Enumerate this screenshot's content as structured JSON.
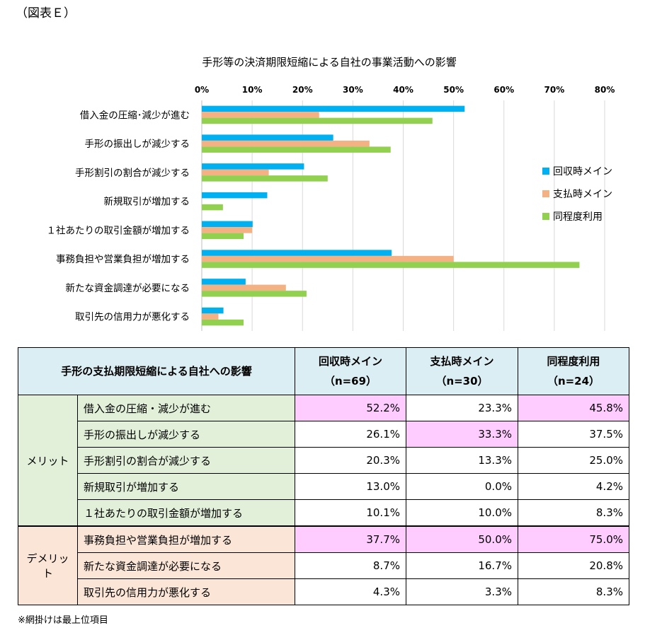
{
  "figure_label": "（図表Ｅ）",
  "chart_data": {
    "type": "bar",
    "orientation": "horizontal",
    "title": "手形等の決済期限短縮による自社の事業活動への影響",
    "xlim": [
      0,
      80
    ],
    "x_ticks": [
      "0%",
      "10%",
      "20%",
      "30%",
      "40%",
      "50%",
      "60%",
      "70%",
      "80%"
    ],
    "categories": [
      "借入金の圧縮･減少が進む",
      "手形の振出しが減少する",
      "手形割引の割合が減少する",
      "新規取引が増加する",
      "１社あたりの取引金額が増加する",
      "事務負担や営業負担が増加する",
      "新たな資金調達が必要になる",
      "取引先の信用力が悪化する"
    ],
    "series": [
      {
        "name": "回収時メイン",
        "color": "#00b0f0",
        "values": [
          52.2,
          26.1,
          20.3,
          13.0,
          10.1,
          37.7,
          8.7,
          4.3
        ]
      },
      {
        "name": "支払時メイン",
        "color": "#f4b183",
        "values": [
          23.3,
          33.3,
          13.3,
          0.0,
          10.0,
          50.0,
          16.7,
          3.3
        ]
      },
      {
        "name": "同程度利用",
        "color": "#92d050",
        "values": [
          45.8,
          37.5,
          25.0,
          4.2,
          8.3,
          75.0,
          20.8,
          8.3
        ]
      }
    ],
    "grid": true,
    "legend_position": "right"
  },
  "table": {
    "header": {
      "title": "手形の支払期限短縮による自社への影響",
      "col1": "回収時メイン",
      "col1_n": "（n=69）",
      "col2": "支払時メイン",
      "col2_n": "（n=30）",
      "col3": "同程度利用",
      "col3_n": "（n=24）"
    },
    "merit_label": "メリット",
    "demerit_label": "デメリット",
    "rows": [
      {
        "label": "借入金の圧縮・減少が進む",
        "v1": "52.2%",
        "v2": "23.3%",
        "v3": "45.8%"
      },
      {
        "label": "手形の振出しが減少する",
        "v1": "26.1%",
        "v2": "33.3%",
        "v3": "37.5%"
      },
      {
        "label": "手形割引の割合が減少する",
        "v1": "20.3%",
        "v2": "13.3%",
        "v3": "25.0%"
      },
      {
        "label": "新規取引が増加する",
        "v1": "13.0%",
        "v2": "0.0%",
        "v3": "4.2%"
      },
      {
        "label": "１社あたりの取引金額が増加する",
        "v1": "10.1%",
        "v2": "10.0%",
        "v3": "8.3%"
      },
      {
        "label": "事務負担や営業負担が増加する",
        "v1": "37.7%",
        "v2": "50.0%",
        "v3": "75.0%"
      },
      {
        "label": "新たな資金調達が必要になる",
        "v1": "8.7%",
        "v2": "16.7%",
        "v3": "20.8%"
      },
      {
        "label": "取引先の信用力が悪化する",
        "v1": "4.3%",
        "v2": "3.3%",
        "v3": "8.3%"
      }
    ],
    "highlight_color": "#ffccff"
  },
  "note": "※網掛けは最上位項目"
}
